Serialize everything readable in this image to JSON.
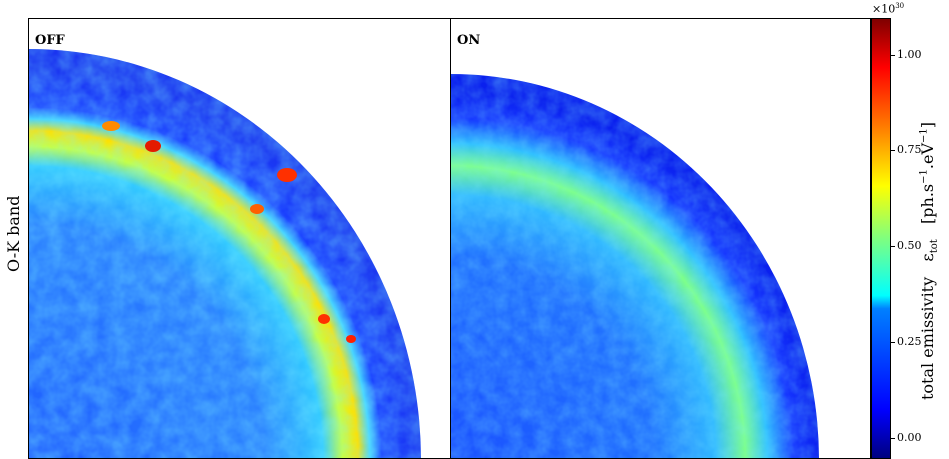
{
  "panels": [
    {
      "label": "OFF",
      "colors": {
        "outer": "#1f3fff",
        "band": "#ffd200",
        "hot": "#e41a00",
        "inner": "#2a7dff"
      }
    },
    {
      "label": "ON",
      "colors": {
        "outer": "#1230ff",
        "band": "#8fff6a",
        "hot": "#3cffb0",
        "inner": "#1e66ff"
      }
    }
  ],
  "row_label": "O-K band",
  "colorbar": {
    "exponent_base": "×10",
    "exponent_power": "30",
    "ticks": [
      "0.00",
      "0.25",
      "0.50",
      "0.75",
      "1.00"
    ],
    "tick_values": [
      0.0,
      0.25,
      0.5,
      0.75,
      1.0
    ],
    "max_value": 1.09,
    "label_main": "total emissivity",
    "label_symbol": "ε",
    "label_symbol_sub": "tot",
    "label_units_pre": "[ph.s",
    "label_units_sup1": "−1",
    "label_units_mid": ".eV",
    "label_units_sup2": "−1",
    "label_units_post": "]"
  }
}
